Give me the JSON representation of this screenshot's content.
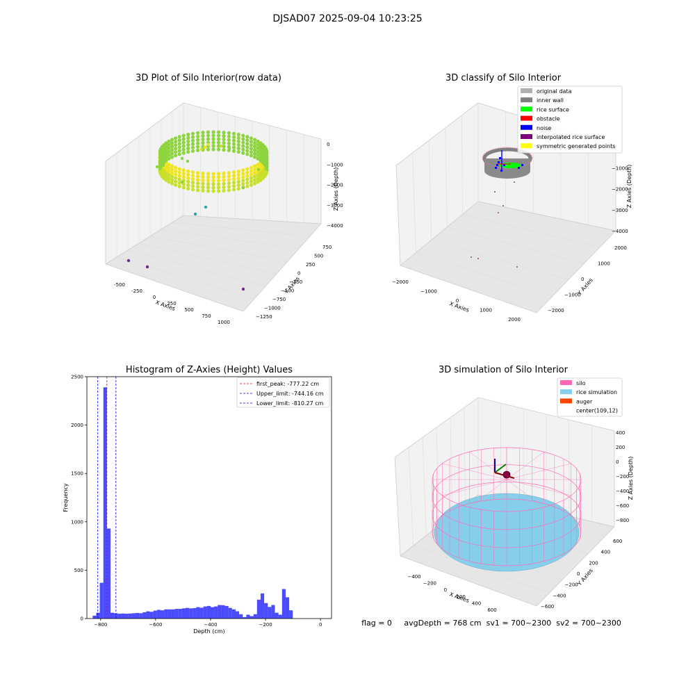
{
  "suptitle": "DJSAD07 2025-09-04 10:23:25",
  "status_line": "flag = 0     avgDepth = 768 cm  sv1 = 700~2300  sv2 = 700~2300",
  "panel_raw": {
    "title": "3D Plot of Silo Interior(row data)",
    "xlabel": "X Axies",
    "ylabel": "Y Axies",
    "zlabel": "Z Axies (Depth)",
    "xticks": [
      "-500",
      "-250",
      "0",
      "250",
      "500",
      "750",
      "1000"
    ],
    "yticks": [
      "750",
      "500",
      "250",
      "0",
      "−250",
      "−500",
      "−750",
      "−1000",
      "−1250"
    ],
    "zticks": [
      "0",
      "−1000",
      "−2000",
      "−3000",
      "−4000"
    ]
  },
  "panel_classify": {
    "title": "3D classify of Silo Interior",
    "xlabel": "X Axies",
    "ylabel": "Y Axies",
    "zlabel": "Z Axies (Depth)",
    "xticks": [
      "−2000",
      "−1000",
      "0",
      "1000",
      "2000"
    ],
    "yticks": [
      "2000",
      "1000",
      "0",
      "−1000",
      "−2000"
    ],
    "zticks": [
      "0",
      "−1000",
      "−2000",
      "−3000",
      "−4000"
    ],
    "legend": [
      {
        "label": "original data",
        "color": "#b0b0b0"
      },
      {
        "label": "inner wall",
        "color": "#808080"
      },
      {
        "label": "rice surface",
        "color": "#00ff00"
      },
      {
        "label": "obstacle",
        "color": "#ff0000"
      },
      {
        "label": "noise",
        "color": "#0000ff"
      },
      {
        "label": "interpolated rice surface",
        "color": "#800080"
      },
      {
        "label": "symmetric generated points",
        "color": "#ffff00"
      }
    ]
  },
  "panel_sim": {
    "title": "3D simulation of Silo Interior",
    "xlabel": "X Axies",
    "ylabel": "Y Axies",
    "zlabel": "Z Axies (Depth)",
    "xticks": [
      "−400",
      "−200",
      "0",
      "200",
      "400",
      "600"
    ],
    "yticks": [
      "600",
      "400",
      "200",
      "0",
      "−200",
      "−400",
      "−600"
    ],
    "zticks": [
      "400",
      "200",
      "0",
      "−200",
      "−400",
      "−600",
      "−800"
    ],
    "legend": [
      {
        "label": "silo",
        "color": "#ff69b4"
      },
      {
        "label": "rice simulation",
        "color": "#87ceeb"
      },
      {
        "label": "auger",
        "color": "#ff4500"
      },
      {
        "label": "center(109,12)",
        "color": ""
      }
    ]
  },
  "chart_data": {
    "type": "bar",
    "title": "Histogram of Z-Axies (Height) Values",
    "xlabel": "Depth (cm)",
    "ylabel": "Frequency",
    "xlim": [
      -850,
      40
    ],
    "ylim": [
      0,
      2500
    ],
    "xticks": [
      -800,
      -600,
      -400,
      -200,
      0
    ],
    "yticks": [
      0,
      500,
      1000,
      1500,
      2000,
      2500
    ],
    "bar_color": "#0000ff",
    "bin_width": 13,
    "bin_lefts": [
      -829,
      -816,
      -803,
      -790,
      -777,
      -764,
      -751,
      -738,
      -725,
      -712,
      -699,
      -686,
      -673,
      -660,
      -647,
      -634,
      -621,
      -608,
      -595,
      -582,
      -569,
      -556,
      -543,
      -530,
      -517,
      -504,
      -491,
      -478,
      -465,
      -452,
      -439,
      -426,
      -413,
      -400,
      -387,
      -374,
      -361,
      -348,
      -335,
      -322,
      -309,
      -296,
      -283,
      -270,
      -257,
      -244,
      -231,
      -218,
      -205,
      -192,
      -179,
      -166,
      -153,
      -140,
      -127,
      -114,
      -101,
      -88,
      -75,
      -62,
      -49,
      -36,
      -23,
      -10
    ],
    "values": [
      30,
      60,
      370,
      2390,
      930,
      60,
      55,
      50,
      52,
      50,
      52,
      55,
      58,
      55,
      65,
      75,
      70,
      82,
      90,
      85,
      95,
      95,
      95,
      100,
      100,
      105,
      110,
      105,
      108,
      118,
      112,
      125,
      130,
      118,
      125,
      140,
      138,
      130,
      110,
      95,
      75,
      45,
      15,
      40,
      25,
      45,
      195,
      260,
      160,
      120,
      140,
      60,
      40,
      305,
      220,
      85,
      0,
      0,
      0,
      0,
      0,
      0,
      0,
      0
    ],
    "vlines": [
      {
        "label": "first_peak: -777.22 cm",
        "x": -777.22,
        "color": "#ff0000"
      },
      {
        "label": "Upper_limit: -744.16 cm",
        "x": -744.16,
        "color": "#0000ff"
      },
      {
        "label": "Lower_limit: -810.27 cm",
        "x": -810.27,
        "color": "#0000ff"
      }
    ]
  }
}
